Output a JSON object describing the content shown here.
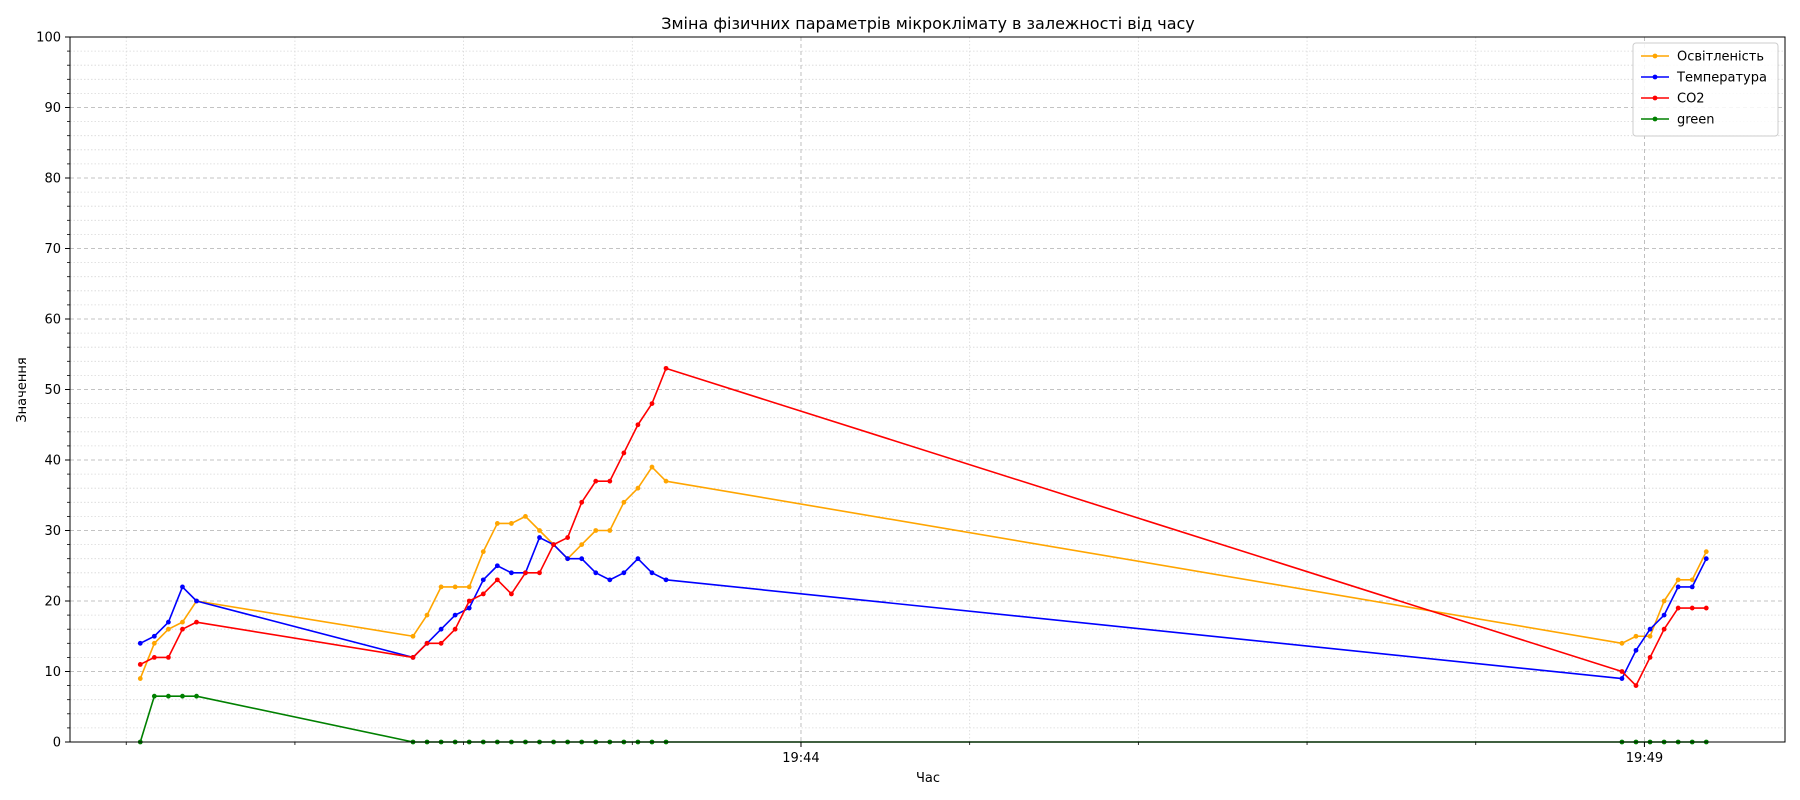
{
  "chart_data": {
    "type": "line",
    "title": "Зміна фізичних параметрів мікроклімату в залежності від часу",
    "xlabel": "Час",
    "ylabel": "Значення",
    "ylim": [
      0,
      100
    ],
    "xlim": [
      "19:39:40",
      "19:49:50"
    ],
    "yticks": [
      0,
      10,
      20,
      30,
      40,
      50,
      60,
      70,
      80,
      90,
      100
    ],
    "xticks": [
      {
        "t": "19:44:00",
        "label": "19:44"
      },
      {
        "t": "19:49:00",
        "label": "19:49"
      }
    ],
    "grid": "major dashed, minor dotted",
    "legend_position": "top-right",
    "x": [
      "19:40:05",
      "19:40:10",
      "19:40:15",
      "19:40:20",
      "19:40:25",
      "19:41:42",
      "19:41:47",
      "19:41:52",
      "19:41:57",
      "19:42:02",
      "19:42:07",
      "19:42:12",
      "19:42:17",
      "19:42:22",
      "19:42:27",
      "19:42:32",
      "19:42:37",
      "19:42:42",
      "19:42:47",
      "19:42:52",
      "19:42:57",
      "19:43:02",
      "19:43:07",
      "19:43:12",
      "19:48:52",
      "19:48:57",
      "19:49:02",
      "19:49:07",
      "19:49:12",
      "19:49:17",
      "19:49:22"
    ],
    "series": [
      {
        "name": "Освітленість",
        "color": "#ffa500",
        "values": [
          9,
          14,
          16,
          17,
          20,
          15,
          18,
          22,
          22,
          22,
          27,
          31,
          31,
          32,
          30,
          28,
          26,
          28,
          30,
          30,
          34,
          36,
          39,
          37,
          14,
          15,
          15,
          20,
          23,
          23,
          27
        ]
      },
      {
        "name": "Температура",
        "color": "#0000ff",
        "values": [
          14,
          15,
          17,
          22,
          20,
          12,
          14,
          16,
          18,
          19,
          23,
          25,
          24,
          24,
          29,
          28,
          26,
          26,
          24,
          23,
          24,
          26,
          24,
          23,
          9,
          13,
          16,
          18,
          22,
          22,
          26
        ]
      },
      {
        "name": "CO2",
        "color": "#ff0000",
        "values": [
          11,
          12,
          12,
          16,
          17,
          12,
          14,
          14,
          16,
          20,
          21,
          23,
          21,
          24,
          24,
          28,
          29,
          34,
          37,
          37,
          41,
          45,
          48,
          53,
          10,
          8,
          12,
          16,
          19,
          19,
          19
        ]
      },
      {
        "name": "green",
        "color": "#008000",
        "values": [
          0,
          6.5,
          6.5,
          6.5,
          6.5,
          0,
          0,
          0,
          0,
          0,
          0,
          0,
          0,
          0,
          0,
          0,
          0,
          0,
          0,
          0,
          0,
          0,
          0,
          0,
          0,
          0,
          0,
          0,
          0,
          0,
          0
        ]
      }
    ]
  }
}
